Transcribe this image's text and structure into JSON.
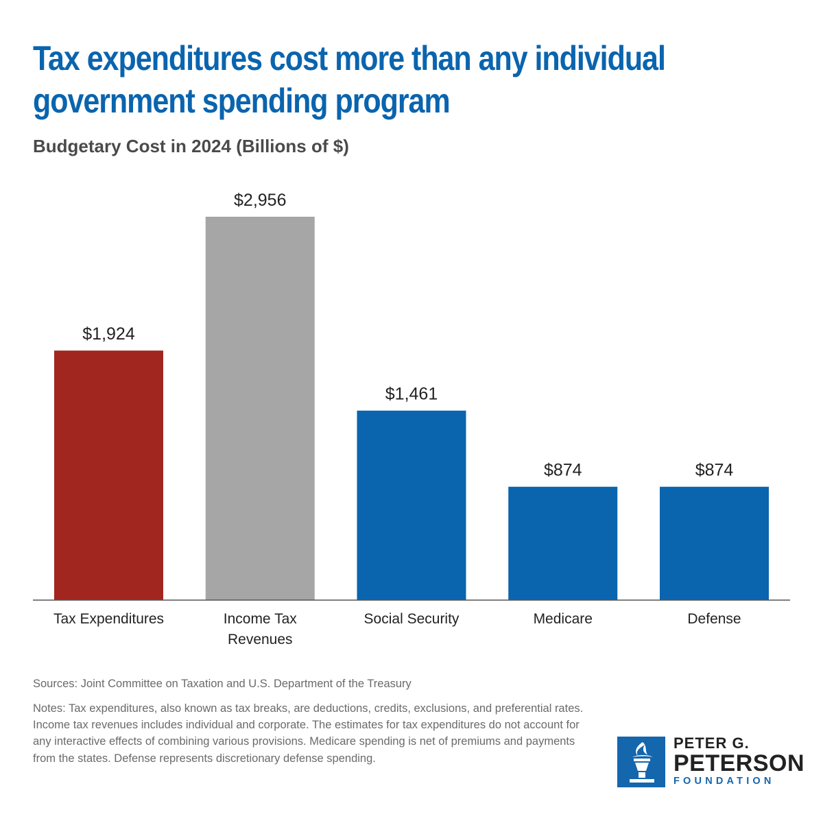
{
  "header": {
    "title": "Tax expenditures cost more than any individual government spending program",
    "subtitle": "Budgetary Cost in 2024 (Billions of $)"
  },
  "chart_data": {
    "type": "bar",
    "title": "Tax expenditures cost more than any individual government spending program",
    "subtitle": "Budgetary Cost in 2024 (Billions of $)",
    "xlabel": "",
    "ylabel": "",
    "ylim": [
      0,
      2956
    ],
    "grid": false,
    "categories": [
      [
        "Tax Expenditures"
      ],
      [
        "Income Tax",
        "Revenues"
      ],
      [
        "Social Security"
      ],
      [
        "Medicare"
      ],
      [
        "Defense"
      ]
    ],
    "values": [
      1924,
      2956,
      1461,
      874,
      874
    ],
    "value_labels": [
      "$1,924",
      "$2,956",
      "$1,461",
      "$874",
      "$874"
    ],
    "colors": [
      "#a0261f",
      "#a6a6a6",
      "#0a64ae",
      "#0a64ae",
      "#0a64ae"
    ]
  },
  "footer": {
    "sources": "Sources: Joint Committee on Taxation and U.S. Department of the Treasury",
    "notes": "Notes: Tax expenditures, also known as tax breaks, are deductions, credits, exclusions, and preferential rates. Income tax revenues includes individual and corporate. The estimates for tax expenditures do not account for any interactive effects of combining various provisions. Medicare spending is net of premiums and payments from the states. Defense represents discretionary defense spending."
  },
  "logo": {
    "line1": "PETER G.",
    "line2": "PETERSON",
    "line3": "FOUNDATION",
    "icon": "torch-icon"
  }
}
